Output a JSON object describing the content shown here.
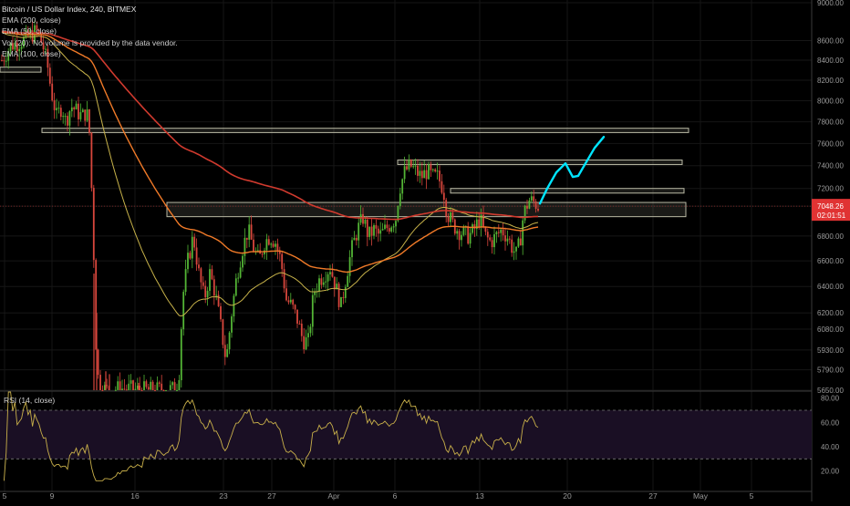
{
  "legend": {
    "title": "Bitcoin / US Dollar Index, 240, BITMEX",
    "line1": "EMA (200, close)",
    "line2": "EMA (50, close)",
    "line3": "Vol (20): No volume is provided by the data vendor.",
    "line4": "EMA (100, close)"
  },
  "rsi_label": "RSI (14, close)",
  "price_tag": {
    "price": "7048.26",
    "countdown": "02:01:51"
  },
  "chart_data": [
    {
      "type": "candlestick",
      "title": "Bitcoin / US Dollar Index, 240, BITMEX",
      "x_tick_labels": [
        "5",
        "9",
        "16",
        "23",
        "27",
        "Apr",
        "6",
        "13",
        "20",
        "27",
        "May",
        "5"
      ],
      "y_tick_labels": [
        "9000.00",
        "8600.00",
        "8400.00",
        "8200.00",
        "8000.00",
        "7800.00",
        "7600.00",
        "7400.00",
        "7200.00",
        "7048.26",
        "6800.00",
        "6600.00",
        "6400.00",
        "6200.00",
        "6080.00",
        "5930.00",
        "5790.00",
        "5650.00"
      ],
      "y_scale": "log",
      "ylim": [
        5650,
        9000
      ],
      "last_price": 7048.26,
      "series": [
        {
          "name": "EMA (200, close)",
          "color": "#d03a2e"
        },
        {
          "name": "EMA (50, close)",
          "color": "#c8b34a"
        },
        {
          "name": "EMA (100, close)",
          "color": "#f07a28"
        }
      ],
      "candle_colors": {
        "up": "#53b535",
        "down": "#d8463c"
      },
      "annotation_color": "#00e5ff",
      "zones_price_ranges": [
        [
          7700,
          7740
        ],
        [
          7410,
          7450
        ],
        [
          7160,
          7200
        ],
        [
          6960,
          7080
        ],
        [
          8280,
          8330
        ]
      ]
    },
    {
      "type": "line",
      "title": "RSI (14, close)",
      "y_tick_labels": [
        "80.00",
        "60.00",
        "40.00",
        "20.00"
      ],
      "ylim": [
        10,
        85
      ],
      "bands": [
        30,
        70
      ],
      "last_value": 57
    }
  ]
}
